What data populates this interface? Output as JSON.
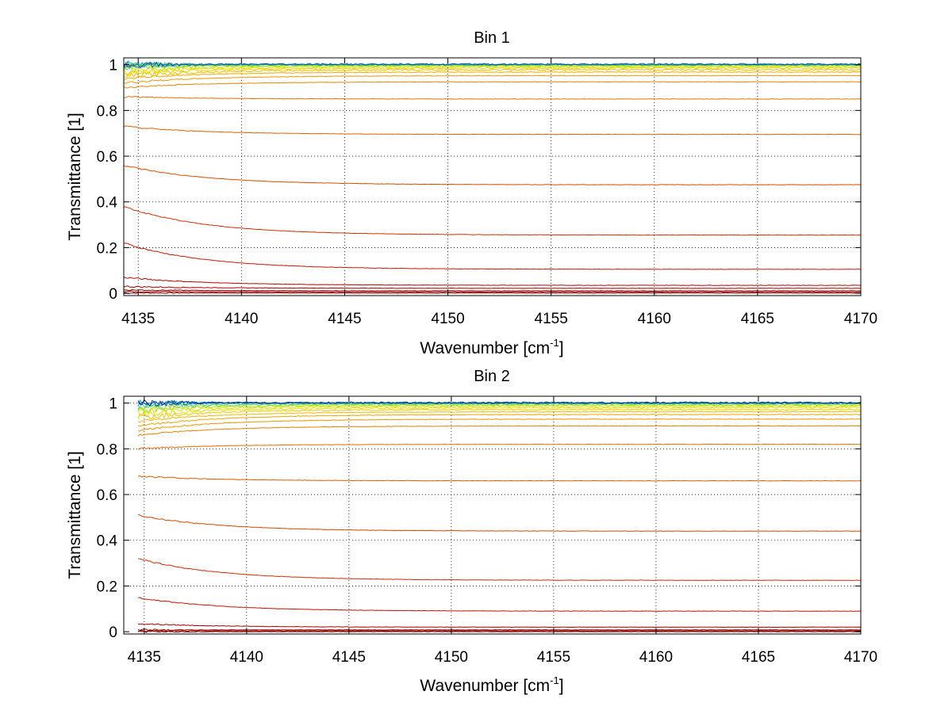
{
  "chart_data": [
    {
      "type": "line",
      "title": "Bin 1",
      "xlabel": "Wavenumber [cm",
      "xlabel_sup": "-1",
      "xlabel_end": "]",
      "ylabel": "Transmittance [1]",
      "xlim": [
        4134.3,
        4170
      ],
      "ylim": [
        -0.01,
        1.03
      ],
      "xticks": [
        4135,
        4140,
        4145,
        4150,
        4155,
        4160,
        4165,
        4170
      ],
      "yticks": [
        0,
        0.2,
        0.4,
        0.6,
        0.8,
        1
      ],
      "ytick_labels": [
        "0",
        "0.2",
        "0.4",
        "0.6",
        "0.8",
        "1"
      ],
      "grid": true,
      "x_range": [
        4134.3,
        4170
      ],
      "series": [
        {
          "start": 0.002,
          "level": 0.001,
          "color": "#7f0000"
        },
        {
          "start": 0.008,
          "level": 0.006,
          "color": "#8c0000"
        },
        {
          "start": 0.015,
          "level": 0.011,
          "color": "#990000"
        },
        {
          "start": 0.03,
          "level": 0.022,
          "color": "#a30000"
        },
        {
          "start": 0.07,
          "level": 0.035,
          "color": "#b00800"
        },
        {
          "start": 0.22,
          "level": 0.105,
          "color": "#c41a00"
        },
        {
          "start": 0.38,
          "level": 0.255,
          "color": "#cf3000"
        },
        {
          "start": 0.56,
          "level": 0.475,
          "color": "#d84a00"
        },
        {
          "start": 0.73,
          "level": 0.695,
          "color": "#de6000"
        },
        {
          "start": 0.86,
          "level": 0.85,
          "color": "#e27400"
        },
        {
          "start": 0.9,
          "level": 0.925,
          "color": "#e68600"
        },
        {
          "start": 0.92,
          "level": 0.952,
          "color": "#ea9800"
        },
        {
          "start": 0.94,
          "level": 0.968,
          "color": "#eeaa00"
        },
        {
          "start": 0.95,
          "level": 0.978,
          "color": "#f2bc00"
        },
        {
          "start": 0.96,
          "level": 0.985,
          "color": "#f0d000"
        },
        {
          "start": 0.97,
          "level": 0.99,
          "color": "#e6e000"
        },
        {
          "start": 0.98,
          "level": 0.994,
          "color": "#c8e400"
        },
        {
          "start": 0.99,
          "level": 0.997,
          "color": "#a0e000"
        },
        {
          "start": 0.995,
          "level": 0.999,
          "color": "#6cd850"
        },
        {
          "start": 1.0,
          "level": 1.0,
          "color": "#30c0a0"
        },
        {
          "start": 1.0,
          "level": 1.001,
          "color": "#1090c0"
        },
        {
          "start": 1.0,
          "level": 1.002,
          "color": "#0050a0"
        }
      ]
    },
    {
      "type": "line",
      "title": "Bin 2",
      "xlabel": "Wavenumber [cm",
      "xlabel_sup": "-1",
      "xlabel_end": "]",
      "ylabel": "Transmittance [1]",
      "xlim": [
        4134,
        4170
      ],
      "ylim": [
        -0.01,
        1.03
      ],
      "xticks": [
        4135,
        4140,
        4145,
        4150,
        4155,
        4160,
        4165,
        4170
      ],
      "yticks": [
        0,
        0.2,
        0.4,
        0.6,
        0.8,
        1
      ],
      "ytick_labels": [
        "0",
        "0.2",
        "0.4",
        "0.6",
        "0.8",
        "1"
      ],
      "grid": true,
      "x_range": [
        4134.7,
        4170
      ],
      "series": [
        {
          "start": 0.0,
          "level": 0.0,
          "color": "#7f0000"
        },
        {
          "start": 0.004,
          "level": 0.004,
          "color": "#8c0000"
        },
        {
          "start": 0.008,
          "level": 0.008,
          "color": "#990000"
        },
        {
          "start": 0.035,
          "level": 0.02,
          "color": "#a80000"
        },
        {
          "start": 0.15,
          "level": 0.09,
          "color": "#c01400"
        },
        {
          "start": 0.32,
          "level": 0.225,
          "color": "#cc2c00"
        },
        {
          "start": 0.51,
          "level": 0.44,
          "color": "#d64600"
        },
        {
          "start": 0.68,
          "level": 0.66,
          "color": "#dc5c00"
        },
        {
          "start": 0.8,
          "level": 0.82,
          "color": "#e07000"
        },
        {
          "start": 0.86,
          "level": 0.9,
          "color": "#e48200"
        },
        {
          "start": 0.88,
          "level": 0.93,
          "color": "#e89400"
        },
        {
          "start": 0.9,
          "level": 0.95,
          "color": "#eca600"
        },
        {
          "start": 0.92,
          "level": 0.962,
          "color": "#f0b800"
        },
        {
          "start": 0.94,
          "level": 0.972,
          "color": "#f2c800"
        },
        {
          "start": 0.95,
          "level": 0.98,
          "color": "#eedc00"
        },
        {
          "start": 0.96,
          "level": 0.986,
          "color": "#d8e400"
        },
        {
          "start": 0.97,
          "level": 0.991,
          "color": "#b0e200"
        },
        {
          "start": 0.98,
          "level": 0.995,
          "color": "#80dc30"
        },
        {
          "start": 0.99,
          "level": 0.998,
          "color": "#40c890"
        },
        {
          "start": 1.0,
          "level": 1.0,
          "color": "#10a0c0"
        },
        {
          "start": 1.0,
          "level": 1.001,
          "color": "#0060b0"
        },
        {
          "start": 1.0,
          "level": 1.002,
          "color": "#003090"
        }
      ]
    }
  ]
}
